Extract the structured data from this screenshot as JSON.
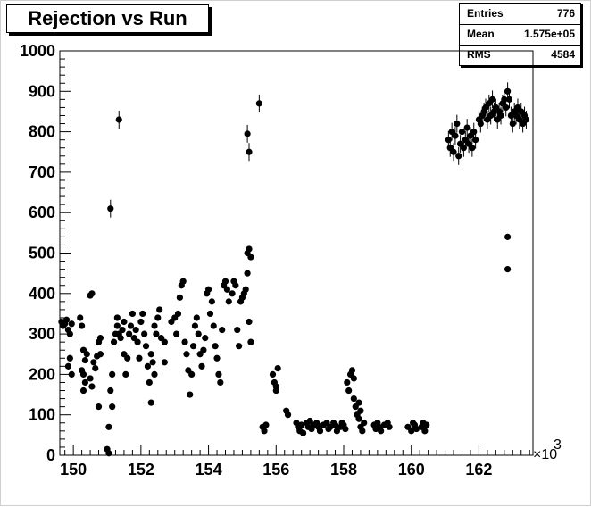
{
  "chart_data": {
    "type": "scatter",
    "title": "Rejection vs Run",
    "xlabel": "",
    "ylabel": "",
    "x_multiplier_label": "×10",
    "x_multiplier_exponent": "3",
    "xlim": [
      149.6,
      163.6
    ],
    "ylim": [
      0,
      1000
    ],
    "x_ticks": [
      150,
      152,
      154,
      156,
      158,
      160,
      162
    ],
    "y_ticks": [
      0,
      100,
      200,
      300,
      400,
      500,
      600,
      700,
      800,
      900,
      1000
    ],
    "stats": {
      "entries_label": "Entries",
      "entries_value": "776",
      "mean_label": "Mean",
      "mean_value": "1.575e+05",
      "rms_label": "RMS",
      "rms_value": "4584"
    },
    "marker_color": "#000000",
    "points": [
      [
        149.65,
        330
      ],
      [
        149.7,
        320
      ],
      [
        149.75,
        325
      ],
      [
        149.8,
        335
      ],
      [
        149.85,
        310
      ],
      [
        149.9,
        300
      ],
      [
        149.95,
        325
      ],
      [
        149.9,
        240
      ],
      [
        149.95,
        200
      ],
      [
        149.85,
        220
      ],
      [
        150.2,
        340
      ],
      [
        150.25,
        320
      ],
      [
        150.3,
        260
      ],
      [
        150.3,
        200
      ],
      [
        150.35,
        180
      ],
      [
        150.3,
        160
      ],
      [
        150.25,
        210
      ],
      [
        150.35,
        235
      ],
      [
        150.4,
        250
      ],
      [
        150.5,
        395
      ],
      [
        150.55,
        400
      ],
      [
        150.5,
        190
      ],
      [
        150.55,
        170
      ],
      [
        150.6,
        230
      ],
      [
        150.65,
        215
      ],
      [
        150.7,
        245
      ],
      [
        150.75,
        280
      ],
      [
        150.8,
        290
      ],
      [
        150.75,
        120
      ],
      [
        150.8,
        250
      ],
      [
        151.05,
        70
      ],
      [
        151.0,
        15
      ],
      [
        151.05,
        5
      ],
      [
        151.1,
        610
      ],
      [
        151.15,
        200
      ],
      [
        151.1,
        160
      ],
      [
        151.15,
        120
      ],
      [
        151.2,
        280
      ],
      [
        151.25,
        300
      ],
      [
        151.3,
        320
      ],
      [
        151.35,
        830
      ],
      [
        151.3,
        340
      ],
      [
        151.35,
        300
      ],
      [
        151.4,
        290
      ],
      [
        151.45,
        310
      ],
      [
        151.5,
        330
      ],
      [
        151.5,
        250
      ],
      [
        151.55,
        200
      ],
      [
        151.6,
        240
      ],
      [
        151.65,
        300
      ],
      [
        151.7,
        320
      ],
      [
        151.75,
        350
      ],
      [
        151.8,
        290
      ],
      [
        151.85,
        310
      ],
      [
        151.9,
        280
      ],
      [
        151.95,
        240
      ],
      [
        152.0,
        330
      ],
      [
        152.05,
        350
      ],
      [
        152.1,
        300
      ],
      [
        152.15,
        270
      ],
      [
        152.2,
        220
      ],
      [
        152.25,
        180
      ],
      [
        152.3,
        130
      ],
      [
        152.35,
        230
      ],
      [
        152.4,
        320
      ],
      [
        152.45,
        300
      ],
      [
        152.5,
        340
      ],
      [
        152.55,
        360
      ],
      [
        152.6,
        290
      ],
      [
        152.3,
        250
      ],
      [
        152.4,
        200
      ],
      [
        152.7,
        280
      ],
      [
        152.7,
        230
      ],
      [
        152.9,
        330
      ],
      [
        153.0,
        340
      ],
      [
        153.05,
        300
      ],
      [
        153.1,
        350
      ],
      [
        153.15,
        390
      ],
      [
        153.2,
        420
      ],
      [
        153.25,
        430
      ],
      [
        153.3,
        280
      ],
      [
        153.35,
        250
      ],
      [
        153.4,
        210
      ],
      [
        153.45,
        150
      ],
      [
        153.5,
        200
      ],
      [
        153.55,
        270
      ],
      [
        153.6,
        320
      ],
      [
        153.65,
        340
      ],
      [
        153.7,
        300
      ],
      [
        153.75,
        250
      ],
      [
        153.8,
        220
      ],
      [
        153.85,
        260
      ],
      [
        153.9,
        290
      ],
      [
        153.95,
        400
      ],
      [
        154.0,
        410
      ],
      [
        154.05,
        350
      ],
      [
        154.1,
        380
      ],
      [
        154.15,
        320
      ],
      [
        154.2,
        270
      ],
      [
        154.25,
        240
      ],
      [
        154.3,
        200
      ],
      [
        154.35,
        180
      ],
      [
        154.4,
        310
      ],
      [
        154.45,
        420
      ],
      [
        154.5,
        430
      ],
      [
        154.55,
        410
      ],
      [
        154.6,
        380
      ],
      [
        154.7,
        400
      ],
      [
        154.75,
        430
      ],
      [
        154.8,
        420
      ],
      [
        154.85,
        310
      ],
      [
        154.9,
        270
      ],
      [
        154.95,
        380
      ],
      [
        155.0,
        390
      ],
      [
        155.05,
        400
      ],
      [
        155.1,
        410
      ],
      [
        155.15,
        500
      ],
      [
        155.2,
        510
      ],
      [
        155.25,
        490
      ],
      [
        155.15,
        450
      ],
      [
        155.2,
        330
      ],
      [
        155.25,
        280
      ],
      [
        155.15,
        795
      ],
      [
        155.2,
        750
      ],
      [
        155.5,
        870
      ],
      [
        155.6,
        70
      ],
      [
        155.65,
        60
      ],
      [
        155.7,
        75
      ],
      [
        155.9,
        200
      ],
      [
        155.95,
        180
      ],
      [
        156.0,
        160
      ],
      [
        156.05,
        215
      ],
      [
        156.0,
        170
      ],
      [
        156.3,
        110
      ],
      [
        156.35,
        100
      ],
      [
        156.6,
        80
      ],
      [
        156.65,
        70
      ],
      [
        156.7,
        60
      ],
      [
        156.75,
        75
      ],
      [
        156.8,
        55
      ],
      [
        156.9,
        80
      ],
      [
        156.95,
        70
      ],
      [
        157.0,
        85
      ],
      [
        157.05,
        65
      ],
      [
        157.1,
        75
      ],
      [
        157.2,
        80
      ],
      [
        157.25,
        70
      ],
      [
        157.3,
        60
      ],
      [
        157.4,
        75
      ],
      [
        157.5,
        80
      ],
      [
        157.55,
        65
      ],
      [
        157.6,
        70
      ],
      [
        157.7,
        80
      ],
      [
        157.75,
        75
      ],
      [
        157.8,
        60
      ],
      [
        157.9,
        70
      ],
      [
        157.95,
        80
      ],
      [
        158.0,
        75
      ],
      [
        158.05,
        65
      ],
      [
        158.1,
        180
      ],
      [
        158.15,
        160
      ],
      [
        158.2,
        200
      ],
      [
        158.25,
        210
      ],
      [
        158.3,
        190
      ],
      [
        158.3,
        140
      ],
      [
        158.35,
        120
      ],
      [
        158.4,
        100
      ],
      [
        158.45,
        90
      ],
      [
        158.5,
        70
      ],
      [
        158.55,
        60
      ],
      [
        158.6,
        80
      ],
      [
        158.45,
        130
      ],
      [
        158.5,
        110
      ],
      [
        158.9,
        75
      ],
      [
        158.95,
        65
      ],
      [
        159.0,
        80
      ],
      [
        159.05,
        70
      ],
      [
        159.1,
        60
      ],
      [
        159.2,
        75
      ],
      [
        159.3,
        80
      ],
      [
        159.35,
        70
      ],
      [
        159.9,
        70
      ],
      [
        160.0,
        60
      ],
      [
        160.05,
        80
      ],
      [
        160.1,
        75
      ],
      [
        160.15,
        65
      ],
      [
        160.3,
        70
      ],
      [
        160.35,
        80
      ],
      [
        160.4,
        60
      ],
      [
        160.45,
        75
      ],
      [
        161.1,
        780
      ],
      [
        161.15,
        760
      ],
      [
        161.2,
        800
      ],
      [
        161.25,
        750
      ],
      [
        161.3,
        790
      ],
      [
        161.35,
        820
      ],
      [
        161.4,
        740
      ],
      [
        161.45,
        770
      ],
      [
        161.5,
        800
      ],
      [
        161.55,
        760
      ],
      [
        161.6,
        780
      ],
      [
        161.65,
        810
      ],
      [
        161.7,
        770
      ],
      [
        161.75,
        790
      ],
      [
        161.8,
        760
      ],
      [
        161.85,
        800
      ],
      [
        161.9,
        780
      ],
      [
        162.0,
        830
      ],
      [
        162.05,
        820
      ],
      [
        162.1,
        840
      ],
      [
        162.15,
        850
      ],
      [
        162.2,
        860
      ],
      [
        162.25,
        830
      ],
      [
        162.3,
        870
      ],
      [
        162.35,
        840
      ],
      [
        162.4,
        880
      ],
      [
        162.45,
        850
      ],
      [
        162.5,
        860
      ],
      [
        162.55,
        830
      ],
      [
        162.6,
        850
      ],
      [
        162.65,
        840
      ],
      [
        162.7,
        870
      ],
      [
        162.75,
        880
      ],
      [
        162.8,
        860
      ],
      [
        162.85,
        900
      ],
      [
        162.9,
        880
      ],
      [
        162.95,
        840
      ],
      [
        163.0,
        820
      ],
      [
        163.05,
        850
      ],
      [
        163.1,
        840
      ],
      [
        163.15,
        860
      ],
      [
        163.2,
        830
      ],
      [
        163.25,
        850
      ],
      [
        163.3,
        820
      ],
      [
        163.35,
        840
      ],
      [
        163.4,
        830
      ],
      [
        162.85,
        540
      ],
      [
        162.85,
        460
      ]
    ]
  }
}
